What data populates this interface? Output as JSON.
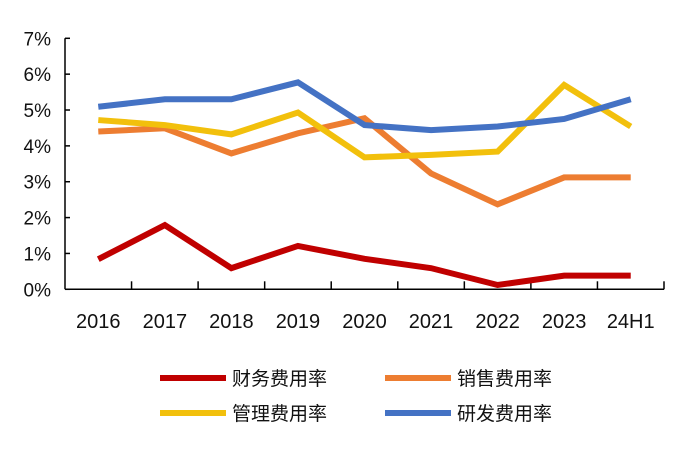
{
  "chart_data": {
    "type": "line",
    "title": "",
    "xlabel": "",
    "ylabel": "",
    "categories": [
      "2016",
      "2017",
      "2018",
      "2019",
      "2020",
      "2021",
      "2022",
      "2023",
      "24H1"
    ],
    "ylim": [
      0,
      7
    ],
    "y_ticks": [
      "0%",
      "1%",
      "2%",
      "3%",
      "4%",
      "5%",
      "6%",
      "7%"
    ],
    "grid": false,
    "legend_position": "bottom",
    "series": [
      {
        "name": "财务费用率",
        "color": "#C00000",
        "values": [
          0.84,
          1.79,
          0.59,
          1.21,
          0.85,
          0.59,
          0.12,
          0.38,
          0.38
        ]
      },
      {
        "name": "销售费用率",
        "color": "#ED7D31",
        "values": [
          4.4,
          4.49,
          3.79,
          4.35,
          4.77,
          3.23,
          2.37,
          3.12,
          3.12
        ]
      },
      {
        "name": "管理费用率",
        "color": "#F2C00C",
        "values": [
          4.72,
          4.58,
          4.32,
          4.93,
          3.68,
          3.75,
          3.84,
          5.7,
          4.54
        ]
      },
      {
        "name": "研发费用率",
        "color": "#4472C4",
        "values": [
          5.09,
          5.3,
          5.3,
          5.77,
          4.58,
          4.44,
          4.54,
          4.75,
          5.3
        ]
      }
    ]
  }
}
